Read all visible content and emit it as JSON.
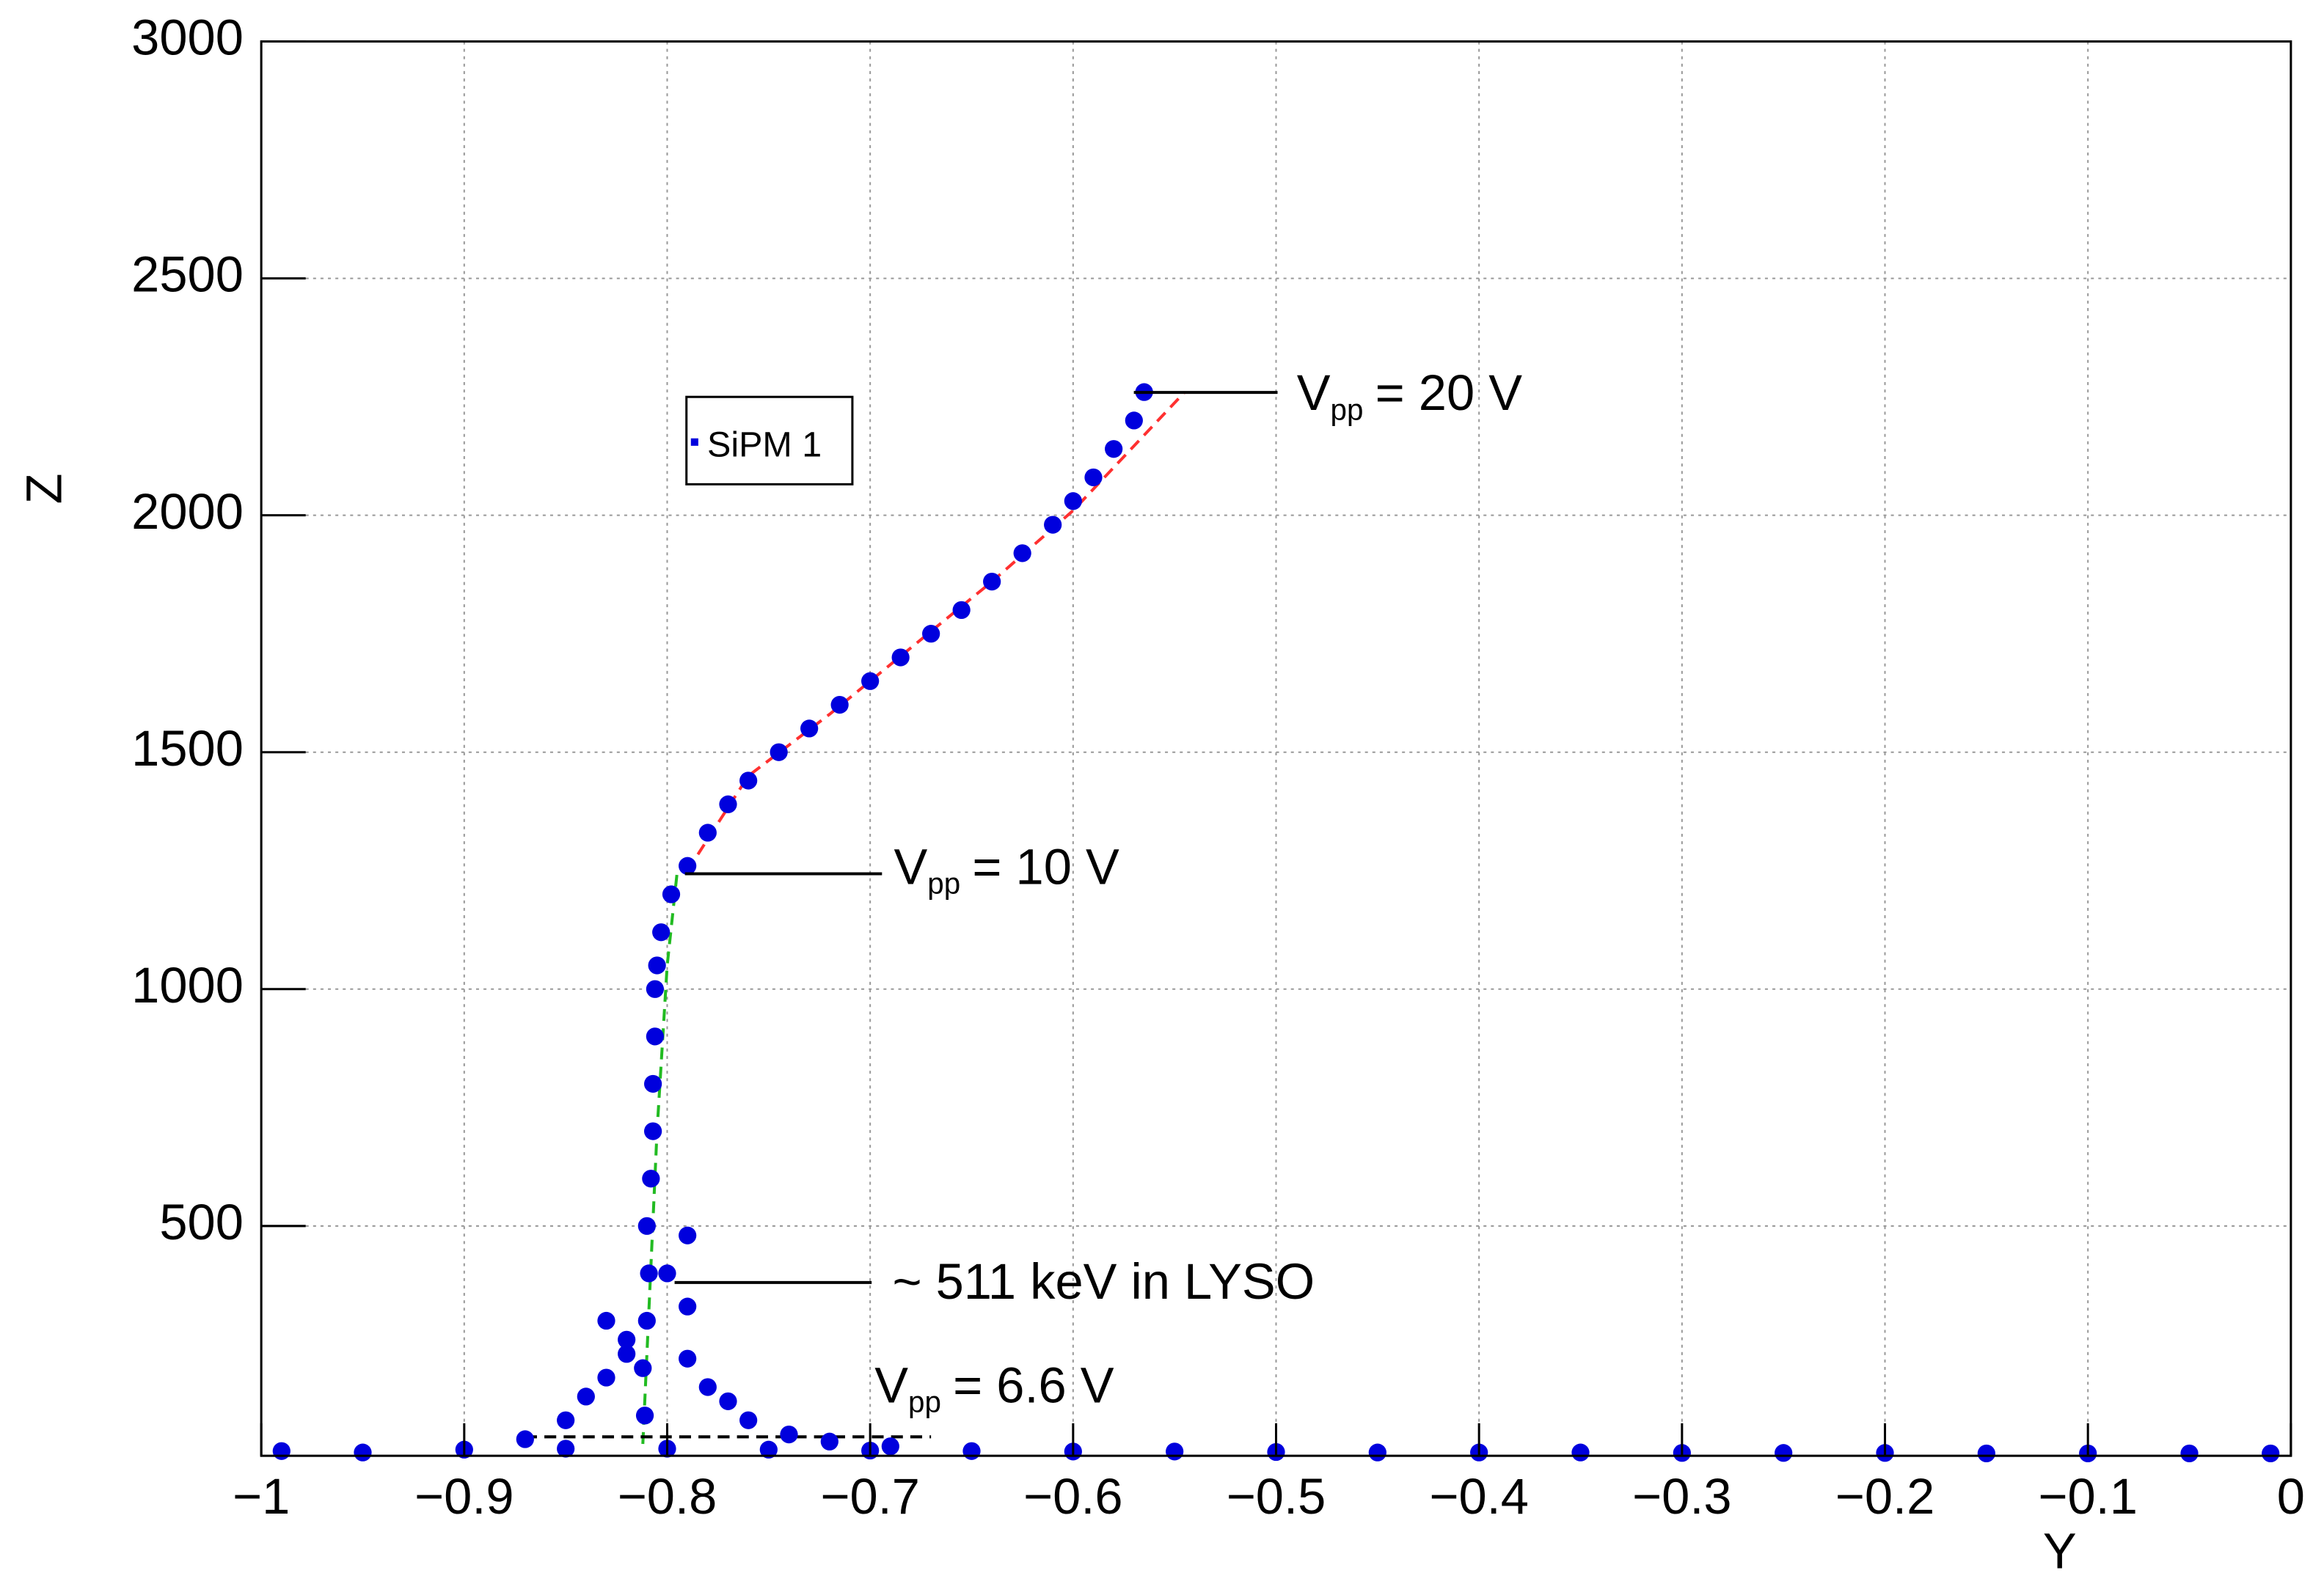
{
  "chart_data": {
    "type": "scatter",
    "xlabel": "Y",
    "ylabel": "Z",
    "xlim": [
      -1,
      0
    ],
    "ylim": [
      15,
      3000
    ],
    "xticks": [
      {
        "value": -1,
        "label": "−1"
      },
      {
        "value": -0.9,
        "label": "−0.9"
      },
      {
        "value": -0.8,
        "label": "−0.8"
      },
      {
        "value": -0.7,
        "label": "−0.7"
      },
      {
        "value": -0.6,
        "label": "−0.6"
      },
      {
        "value": -0.5,
        "label": "−0.5"
      },
      {
        "value": -0.4,
        "label": "−0.4"
      },
      {
        "value": -0.3,
        "label": "−0.3"
      },
      {
        "value": -0.2,
        "label": "−0.2"
      },
      {
        "value": -0.1,
        "label": "−0.1"
      },
      0
    ],
    "yticks": [
      500,
      1000,
      1500,
      2000,
      2500,
      3000
    ],
    "grid": true,
    "series": [
      {
        "name": "SiPM 1",
        "color": "#0000dd",
        "x": [
          -0.99,
          -0.95,
          -0.9,
          -0.85,
          -0.8,
          -0.75,
          -0.7,
          -0.65,
          -0.6,
          -0.55,
          -0.5,
          -0.45,
          -0.4,
          -0.35,
          -0.3,
          -0.25,
          -0.2,
          -0.15,
          -0.1,
          -0.05,
          -0.01,
          -0.87,
          -0.85,
          -0.84,
          -0.83,
          -0.82,
          -0.79,
          -0.78,
          -0.77,
          -0.76,
          -0.74,
          -0.72,
          -0.69,
          -0.83,
          -0.79,
          -0.8,
          -0.82,
          -0.79,
          -0.811,
          -0.812,
          -0.81,
          -0.809,
          -0.81,
          -0.808,
          -0.807,
          -0.807,
          -0.806,
          -0.806,
          -0.805,
          -0.803,
          -0.798,
          -0.79,
          -0.78,
          -0.77,
          -0.76,
          -0.745,
          -0.73,
          -0.715,
          -0.7,
          -0.685,
          -0.67,
          -0.655,
          -0.64,
          -0.625,
          -0.61,
          -0.6,
          -0.59,
          -0.58,
          -0.57,
          -0.565
        ],
        "values": [
          25,
          22,
          28,
          30,
          30,
          28,
          26,
          25,
          24,
          24,
          23,
          22,
          22,
          22,
          21,
          21,
          21,
          20,
          20,
          20,
          20,
          50,
          90,
          140,
          180,
          230,
          220,
          160,
          130,
          90,
          60,
          45,
          35,
          300,
          330,
          400,
          260,
          480,
          100,
          200,
          300,
          400,
          500,
          600,
          700,
          800,
          900,
          1000,
          1050,
          1120,
          1200,
          1260,
          1330,
          1390,
          1440,
          1500,
          1550,
          1600,
          1650,
          1700,
          1750,
          1800,
          1860,
          1920,
          1980,
          2030,
          2080,
          2140,
          2200,
          2260
        ]
      }
    ],
    "fits": [
      {
        "color": "#ff3030",
        "x": [
          -0.79,
          -0.76,
          -0.72,
          -0.68,
          -0.64,
          -0.6,
          -0.545
        ],
        "values": [
          1250,
          1450,
          1580,
          1720,
          1860,
          2010,
          2260
        ]
      },
      {
        "color": "#22bb22",
        "x": [
          -0.812,
          -0.805,
          -0.8,
          -0.795
        ],
        "values": [
          40,
          700,
          1050,
          1250
        ]
      },
      {
        "color": "#000000",
        "x": [
          -0.87,
          -0.67
        ],
        "values": [
          55,
          55
        ]
      }
    ],
    "annotations": [
      {
        "text": "V",
        "sub": "pp",
        "rest": "= 20 V"
      },
      {
        "text": "V",
        "sub": "pp",
        "rest": "= 10 V"
      },
      {
        "text": "~ 511 keV in LYSO"
      },
      {
        "text": "V",
        "sub": "pp",
        "rest": "= 6.6 V"
      }
    ]
  }
}
